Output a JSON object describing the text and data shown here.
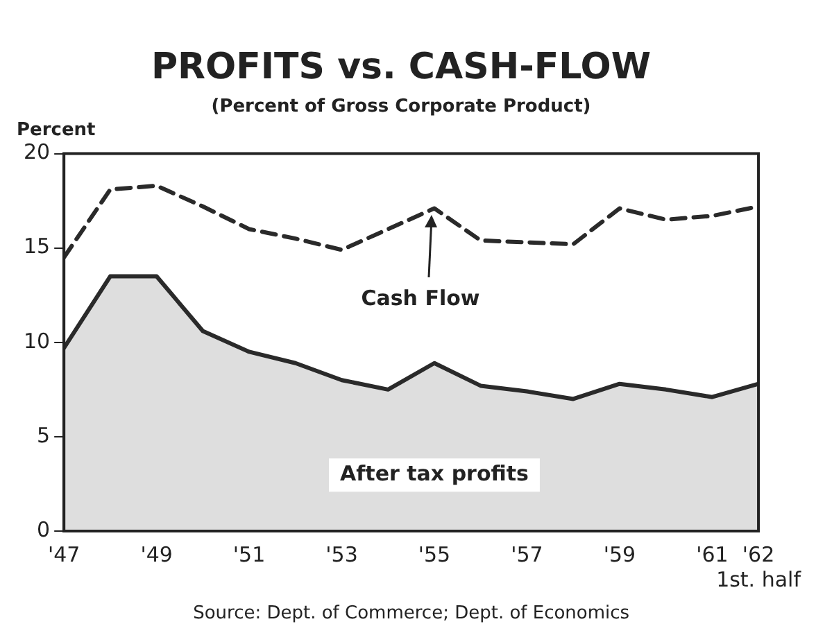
{
  "chart_data": {
    "type": "line",
    "title": "PROFITS vs. CASH-FLOW",
    "subtitle": "(Percent of Gross Corporate Product)",
    "ylabel": "Percent",
    "x": [
      1947,
      1948,
      1949,
      1950,
      1951,
      1952,
      1953,
      1954,
      1955,
      1956,
      1957,
      1958,
      1959,
      1960,
      1961,
      1962
    ],
    "series": [
      {
        "name": "Cash Flow",
        "type": "line",
        "line_style": "dashed",
        "color": "#2a2a2a",
        "values": [
          14.5,
          18.1,
          18.3,
          17.2,
          16.0,
          15.5,
          14.9,
          16.0,
          17.1,
          15.4,
          15.3,
          15.2,
          17.1,
          16.5,
          16.7,
          17.2
        ]
      },
      {
        "name": "After tax profits",
        "type": "area",
        "line_style": "solid",
        "color": "#2a2a2a",
        "values": [
          9.7,
          13.5,
          13.5,
          10.6,
          9.5,
          8.9,
          8.0,
          7.5,
          8.9,
          7.7,
          7.4,
          7.0,
          7.8,
          7.5,
          7.1,
          7.8
        ]
      }
    ],
    "xlim": [
      1947,
      1962
    ],
    "xticks": [
      {
        "value": 1947,
        "label": "'47"
      },
      {
        "value": 1949,
        "label": "'49"
      },
      {
        "value": 1951,
        "label": "'51"
      },
      {
        "value": 1953,
        "label": "'53"
      },
      {
        "value": 1955,
        "label": "'55"
      },
      {
        "value": 1957,
        "label": "'57"
      },
      {
        "value": 1959,
        "label": "'59"
      },
      {
        "value": 1961,
        "label": "'61"
      },
      {
        "value": 1962,
        "label": "'62\n1st. half"
      }
    ],
    "ylim": [
      0,
      20
    ],
    "yticks": [
      0,
      5,
      10,
      15,
      20
    ],
    "grid": false,
    "legend": false,
    "marker": "none",
    "annotations": [
      "Source: Dept. of Commerce; Dept. of Economics"
    ]
  }
}
